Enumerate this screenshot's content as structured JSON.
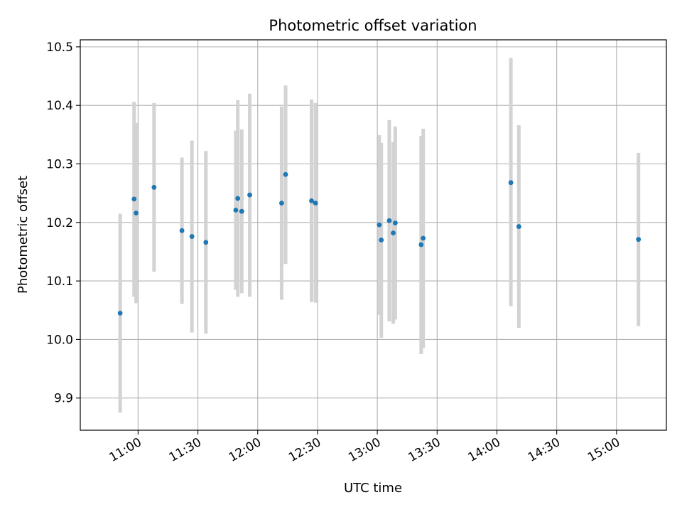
{
  "chart_data": {
    "type": "scatter",
    "title": "Photometric offset variation",
    "xlabel": "UTC time",
    "ylabel": "Photometric offset",
    "x_axis_kind": "time",
    "xlim": [
      "10:31",
      "15:25"
    ],
    "ylim": [
      9.845,
      10.512
    ],
    "x_ticks": [
      "11:00",
      "11:30",
      "12:00",
      "12:30",
      "13:00",
      "13:30",
      "14:00",
      "14:30",
      "15:00"
    ],
    "y_ticks": [
      "9.9",
      "10.0",
      "10.1",
      "10.2",
      "10.3",
      "10.4",
      "10.5"
    ],
    "grid": true,
    "colors": {
      "points": "#1f77b4",
      "error_bars": "#d3d3d3",
      "grid": "#b0b0b0"
    },
    "series": [
      {
        "points": [
          {
            "x": "10:51",
            "y": 10.045,
            "lo": 9.875,
            "hi": 10.215
          },
          {
            "x": "10:58",
            "y": 10.24,
            "lo": 10.073,
            "hi": 10.406
          },
          {
            "x": "10:59",
            "y": 10.216,
            "lo": 10.062,
            "hi": 10.37
          },
          {
            "x": "11:08",
            "y": 10.26,
            "lo": 10.116,
            "hi": 10.404
          },
          {
            "x": "11:22",
            "y": 10.186,
            "lo": 10.061,
            "hi": 10.311
          },
          {
            "x": "11:27",
            "y": 10.176,
            "lo": 10.012,
            "hi": 10.34
          },
          {
            "x": "11:34",
            "y": 10.166,
            "lo": 10.01,
            "hi": 10.322
          },
          {
            "x": "11:49",
            "y": 10.221,
            "lo": 10.085,
            "hi": 10.357
          },
          {
            "x": "11:50",
            "y": 10.241,
            "lo": 10.073,
            "hi": 10.409
          },
          {
            "x": "11:52",
            "y": 10.219,
            "lo": 10.079,
            "hi": 10.359
          },
          {
            "x": "11:56",
            "y": 10.247,
            "lo": 10.073,
            "hi": 10.42
          },
          {
            "x": "12:12",
            "y": 10.233,
            "lo": 10.068,
            "hi": 10.398
          },
          {
            "x": "12:14",
            "y": 10.282,
            "lo": 10.129,
            "hi": 10.434
          },
          {
            "x": "12:27",
            "y": 10.237,
            "lo": 10.064,
            "hi": 10.41
          },
          {
            "x": "12:29",
            "y": 10.233,
            "lo": 10.063,
            "hi": 10.404
          },
          {
            "x": "13:01",
            "y": 10.196,
            "lo": 10.042,
            "hi": 10.349
          },
          {
            "x": "13:02",
            "y": 10.17,
            "lo": 10.003,
            "hi": 10.336
          },
          {
            "x": "13:06",
            "y": 10.203,
            "lo": 10.031,
            "hi": 10.375
          },
          {
            "x": "13:08",
            "y": 10.182,
            "lo": 10.027,
            "hi": 10.337
          },
          {
            "x": "13:09",
            "y": 10.199,
            "lo": 10.034,
            "hi": 10.364
          },
          {
            "x": "13:22",
            "y": 10.162,
            "lo": 9.975,
            "hi": 10.348
          },
          {
            "x": "13:23",
            "y": 10.173,
            "lo": 9.985,
            "hi": 10.36
          },
          {
            "x": "14:07",
            "y": 10.268,
            "lo": 10.057,
            "hi": 10.481
          },
          {
            "x": "14:11",
            "y": 10.193,
            "lo": 10.02,
            "hi": 10.366
          },
          {
            "x": "15:11",
            "y": 10.171,
            "lo": 10.023,
            "hi": 10.319
          }
        ]
      }
    ]
  }
}
